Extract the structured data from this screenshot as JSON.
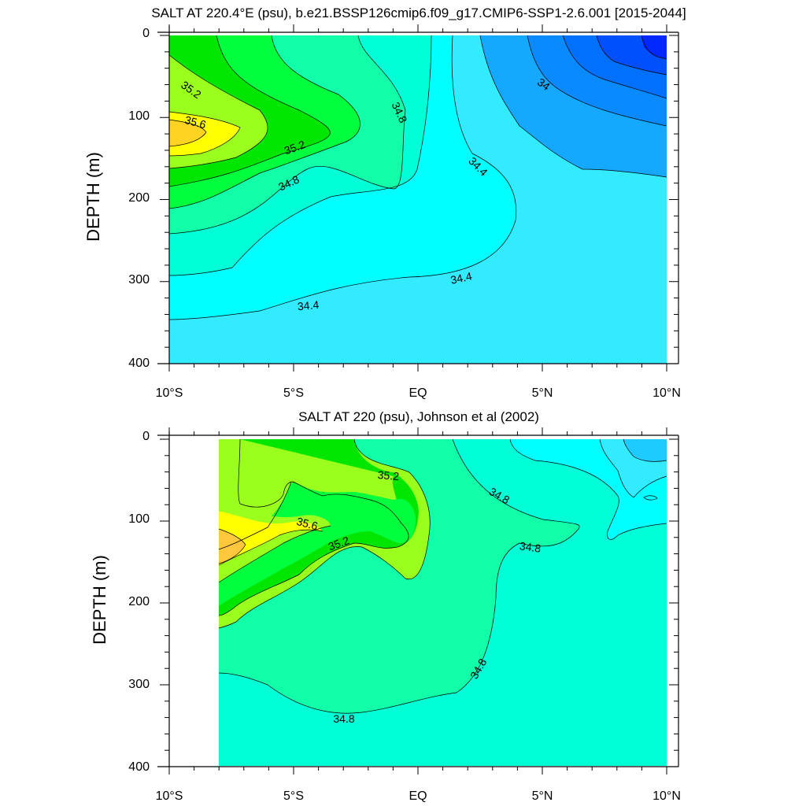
{
  "chart_data": [
    {
      "type": "contour",
      "title": "SALT AT 220.4°E (psu), b.e21.BSSP126cmip6.f09_g17.CMIP6-SSP1-2.6.001 [2015-2044]",
      "ylabel": "DEPTH (m)",
      "xlabel": "",
      "x_ticks": [
        "10°S",
        "5°S",
        "EQ",
        "5°N",
        "10°N"
      ],
      "y_ticks": [
        "0",
        "100",
        "200",
        "300",
        "400"
      ],
      "xlim": [
        -10,
        10
      ],
      "ylim": [
        400,
        0
      ],
      "contour_interval": 0.2,
      "contour_labels": [
        {
          "text": "35.2",
          "x": -9.3,
          "y": 70
        },
        {
          "text": "35.6",
          "x": -9.0,
          "y": 110
        },
        {
          "text": "35.2",
          "x": -5.2,
          "y": 150
        },
        {
          "text": "34.8",
          "x": -5.5,
          "y": 185
        },
        {
          "text": "34.8",
          "x": -1.0,
          "y": 95
        },
        {
          "text": "34.4",
          "x": 2.2,
          "y": 165
        },
        {
          "text": "34",
          "x": 4.7,
          "y": 65
        },
        {
          "text": "34.4",
          "x": 1.7,
          "y": 300
        },
        {
          "text": "34.4",
          "x": -4.8,
          "y": 330
        }
      ],
      "levels_colors": {
        "33.6": "#0050ff",
        "33.8": "#0a8aff",
        "34.0": "#14a8ff",
        "34.2": "#1ecbff",
        "34.4": "#33ebff",
        "34.6": "#00ffff",
        "34.8": "#00ffd6",
        "35.0": "#12ffaa",
        "35.2": "#00ff3c",
        "35.4": "#00e600",
        "35.6": "#9bff1e",
        "35.8": "#ffff00",
        "36.0": "#ffd322"
      }
    },
    {
      "type": "contour",
      "title": "SALT AT 220 (psu), Johnson et al (2002)",
      "ylabel": "DEPTH (m)",
      "xlabel": "",
      "x_ticks": [
        "10°S",
        "5°S",
        "EQ",
        "5°N",
        "10°N"
      ],
      "y_ticks": [
        "0",
        "100",
        "200",
        "300",
        "400"
      ],
      "xlim": [
        -10,
        10
      ],
      "ylim": [
        400,
        0
      ],
      "data_xlim": [
        -8,
        10
      ],
      "contour_interval": 0.2,
      "contour_labels": [
        {
          "text": "35.2",
          "x": -2.2,
          "y": 30
        },
        {
          "text": "35.6",
          "x": -4.5,
          "y": 75
        },
        {
          "text": "35.2",
          "x": -3.2,
          "y": 120
        },
        {
          "text": "34.8",
          "x": 3.5,
          "y": 60
        },
        {
          "text": "34.8",
          "x": 4.6,
          "y": 110
        },
        {
          "text": "34.8",
          "x": 2.2,
          "y": 275
        },
        {
          "text": "34.8",
          "x": -3.2,
          "y": 340
        }
      ],
      "levels_colors": {
        "34.4": "#1ecbff",
        "34.6": "#33ebff",
        "34.8": "#00ffff",
        "34.9": "#00ffd6",
        "35.0": "#12ffaa",
        "35.2": "#9bff1e",
        "35.4": "#00e600",
        "35.6": "#9bff1e",
        "35.8": "#ffff00",
        "36.0": "#ffc83c"
      }
    }
  ]
}
